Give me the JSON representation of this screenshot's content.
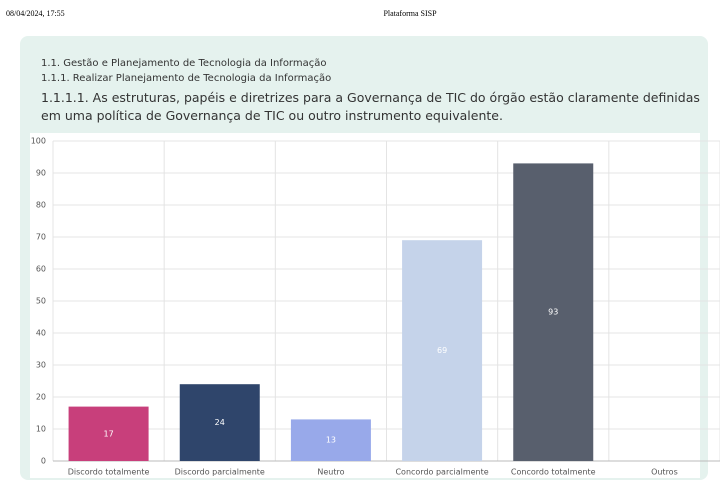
{
  "header": {
    "timestamp": "08/04/2024, 17:55",
    "title": "Plataforma SISP"
  },
  "headings": [
    "1.1. Gestão e Planejamento de Tecnologia da Informação",
    "1.1.1. Realizar Planejamento de Tecnologia da Informação",
    "1.1.1.1. As estruturas, papéis e diretrizes para a Governança de TIC do órgão estão claramente definidas em uma política de Governança de TIC ou outro instrumento equivalente."
  ],
  "chart_data": {
    "type": "bar",
    "categories": [
      "Discordo totalmente",
      "Discordo parcialmente",
      "Neutro",
      "Concordo parcialmente",
      "Concordo totalmente",
      "Outros"
    ],
    "values": [
      17,
      24,
      13,
      69,
      93,
      0
    ],
    "colors": [
      "#c83f7b",
      "#2f456b",
      "#98a9ea",
      "#c5d3ea",
      "#585f6d",
      "#cccccc"
    ],
    "ylim": [
      0,
      100
    ],
    "yticks": [
      0,
      10,
      20,
      30,
      40,
      50,
      60,
      70,
      80,
      90,
      100
    ],
    "grid": true
  }
}
